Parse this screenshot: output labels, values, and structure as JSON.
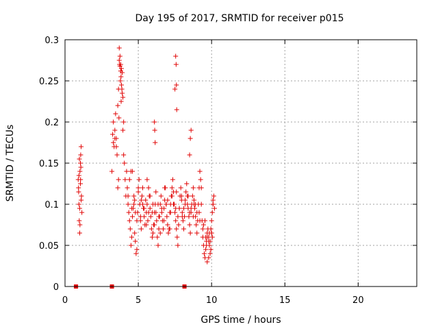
{
  "chart_data": {
    "type": "scatter",
    "title": "Day 195 of 2017, SRMTID for receiver p015",
    "xlabel": "GPS time / hours",
    "ylabel": "SRMTID / TECUs",
    "xlim": [
      0,
      24
    ],
    "ylim": [
      0,
      0.3
    ],
    "xticks": [
      0,
      5,
      10,
      15,
      20
    ],
    "xtick_labels": [
      "0",
      "5",
      "10",
      "15",
      "20"
    ],
    "yticks": [
      0,
      0.05,
      0.1,
      0.15,
      0.2,
      0.25,
      0.3
    ],
    "ytick_labels": [
      "0",
      "0.05",
      "0.1",
      "0.15",
      "0.2",
      "0.25",
      "0.3"
    ],
    "grid": true,
    "marker": "+",
    "color": "#e00000",
    "series": [
      {
        "name": "SRMTID",
        "x": [
          0.9,
          0.92,
          0.95,
          0.97,
          1.0,
          1.02,
          1.05,
          1.07,
          1.1,
          1.12,
          1.0,
          1.05,
          0.95,
          1.08,
          0.93,
          1.1,
          1.15,
          1.02,
          0.98,
          1.06,
          3.2,
          3.25,
          3.3,
          3.35,
          3.4,
          3.45,
          3.5,
          3.55,
          3.6,
          3.65,
          3.7,
          3.75,
          3.8,
          3.85,
          3.9,
          3.95,
          4.0,
          4.05,
          4.1,
          4.15,
          3.7,
          3.72,
          3.75,
          3.8,
          3.82,
          3.85,
          3.88,
          3.9,
          3.78,
          3.83,
          3.6,
          3.65,
          3.68,
          3.95,
          4.0,
          4.2,
          4.25,
          4.3,
          4.35,
          4.4,
          4.45,
          4.5,
          4.55,
          4.6,
          4.65,
          4.7,
          4.75,
          4.8,
          4.85,
          4.9,
          4.95,
          5.0,
          5.05,
          5.1,
          5.15,
          5.2,
          5.25,
          5.3,
          5.35,
          5.4,
          5.45,
          5.5,
          5.55,
          5.6,
          5.65,
          5.7,
          5.75,
          5.8,
          5.85,
          5.9,
          5.95,
          6.0,
          6.05,
          6.1,
          6.15,
          6.2,
          6.25,
          6.3,
          6.35,
          6.4,
          6.45,
          6.5,
          6.55,
          6.6,
          6.65,
          6.7,
          6.75,
          6.8,
          6.85,
          6.9,
          6.95,
          7.0,
          7.05,
          7.1,
          7.15,
          7.2,
          7.25,
          7.3,
          7.35,
          7.4,
          7.45,
          7.5,
          7.55,
          7.6,
          7.65,
          7.7,
          7.75,
          7.8,
          7.85,
          7.9,
          7.95,
          8.0,
          8.05,
          8.1,
          8.15,
          8.2,
          8.25,
          8.3,
          8.35,
          8.4,
          8.45,
          8.5,
          8.55,
          8.6,
          8.65,
          8.7,
          8.75,
          8.8,
          8.85,
          8.9,
          8.95,
          9.0,
          9.05,
          9.1,
          9.15,
          9.2,
          9.25,
          9.3,
          9.35,
          9.4,
          9.45,
          9.5,
          9.55,
          9.6,
          9.65,
          9.7,
          9.75,
          9.8,
          9.85,
          9.9,
          9.95,
          10.0,
          10.05,
          10.1,
          10.15,
          10.2,
          10.0,
          9.9,
          9.8,
          9.7,
          6.1,
          6.12,
          6.15,
          7.55,
          7.58,
          7.6,
          7.62,
          7.5,
          8.5,
          8.55,
          8.6,
          4.6,
          4.7,
          4.8,
          5.0,
          5.2,
          5.4,
          5.6,
          5.8,
          6.0,
          6.2,
          6.4,
          6.6,
          6.8,
          7.0,
          7.2,
          7.4,
          7.6,
          7.8,
          8.0,
          8.2,
          8.4,
          8.6,
          8.8,
          9.0,
          9.2,
          9.4,
          9.6,
          9.8,
          10.0,
          4.5,
          4.9,
          5.3,
          5.7,
          6.1,
          6.5,
          6.9,
          7.3,
          7.7,
          8.1,
          8.5,
          8.9,
          9.3,
          9.7,
          10.1,
          4.3,
          4.4,
          3.3,
          3.4,
          3.5,
          4.55,
          4.75,
          5.15,
          5.55,
          5.95,
          6.35,
          6.75,
          7.15,
          7.55,
          7.95,
          8.35,
          8.75,
          9.15,
          9.55,
          9.95,
          10.05,
          10.1,
          9.85,
          9.65,
          9.45
        ],
        "y": [
          0.13,
          0.12,
          0.1,
          0.08,
          0.065,
          0.14,
          0.125,
          0.16,
          0.17,
          0.11,
          0.095,
          0.15,
          0.135,
          0.145,
          0.115,
          0.105,
          0.09,
          0.075,
          0.155,
          0.13,
          0.14,
          0.185,
          0.2,
          0.17,
          0.19,
          0.21,
          0.18,
          0.16,
          0.22,
          0.24,
          0.29,
          0.28,
          0.27,
          0.265,
          0.26,
          0.23,
          0.2,
          0.15,
          0.13,
          0.11,
          0.275,
          0.27,
          0.268,
          0.262,
          0.255,
          0.245,
          0.24,
          0.235,
          0.25,
          0.225,
          0.12,
          0.13,
          0.205,
          0.19,
          0.16,
          0.14,
          0.12,
          0.1,
          0.09,
          0.08,
          0.07,
          0.05,
          0.06,
          0.085,
          0.095,
          0.1,
          0.065,
          0.055,
          0.04,
          0.045,
          0.09,
          0.115,
          0.13,
          0.1,
          0.08,
          0.07,
          0.11,
          0.12,
          0.095,
          0.085,
          0.075,
          0.105,
          0.09,
          0.1,
          0.08,
          0.12,
          0.11,
          0.095,
          0.085,
          0.07,
          0.06,
          0.065,
          0.075,
          0.09,
          0.1,
          0.115,
          0.08,
          0.06,
          0.05,
          0.07,
          0.085,
          0.1,
          0.11,
          0.09,
          0.08,
          0.07,
          0.095,
          0.105,
          0.12,
          0.1,
          0.085,
          0.075,
          0.065,
          0.07,
          0.09,
          0.1,
          0.11,
          0.12,
          0.13,
          0.115,
          0.1,
          0.09,
          0.08,
          0.07,
          0.06,
          0.05,
          0.075,
          0.095,
          0.11,
          0.12,
          0.105,
          0.09,
          0.08,
          0.07,
          0.085,
          0.1,
          0.115,
          0.125,
          0.11,
          0.095,
          0.085,
          0.075,
          0.065,
          0.09,
          0.1,
          0.11,
          0.12,
          0.105,
          0.095,
          0.085,
          0.075,
          0.065,
          0.08,
          0.1,
          0.12,
          0.14,
          0.13,
          0.1,
          0.08,
          0.06,
          0.05,
          0.04,
          0.035,
          0.045,
          0.055,
          0.065,
          0.07,
          0.06,
          0.05,
          0.04,
          0.045,
          0.08,
          0.09,
          0.1,
          0.11,
          0.095,
          0.065,
          0.055,
          0.035,
          0.03,
          0.2,
          0.19,
          0.175,
          0.28,
          0.27,
          0.245,
          0.215,
          0.24,
          0.16,
          0.18,
          0.19,
          0.14,
          0.11,
          0.09,
          0.12,
          0.105,
          0.095,
          0.13,
          0.11,
          0.1,
          0.09,
          0.085,
          0.095,
          0.12,
          0.105,
          0.09,
          0.1,
          0.115,
          0.095,
          0.085,
          0.105,
          0.11,
          0.095,
          0.1,
          0.09,
          0.08,
          0.07,
          0.06,
          0.055,
          0.065,
          0.14,
          0.08,
          0.1,
          0.09,
          0.075,
          0.065,
          0.1,
          0.11,
          0.085,
          0.095,
          0.09,
          0.1,
          0.12,
          0.06,
          0.105,
          0.11,
          0.13,
          0.175,
          0.18,
          0.17,
          0.095,
          0.105,
          0.085,
          0.075,
          0.09,
          0.1,
          0.08,
          0.07,
          0.095,
          0.11,
          0.1,
          0.085,
          0.09,
          0.08,
          0.07,
          0.06,
          0.1,
          0.065,
          0.05,
          0.075
        ]
      }
    ],
    "devices": [
      {
        "name": "zero markers",
        "x": [
          0.75,
          3.2,
          8.15
        ],
        "y": [
          0,
          0,
          0
        ]
      }
    ]
  }
}
